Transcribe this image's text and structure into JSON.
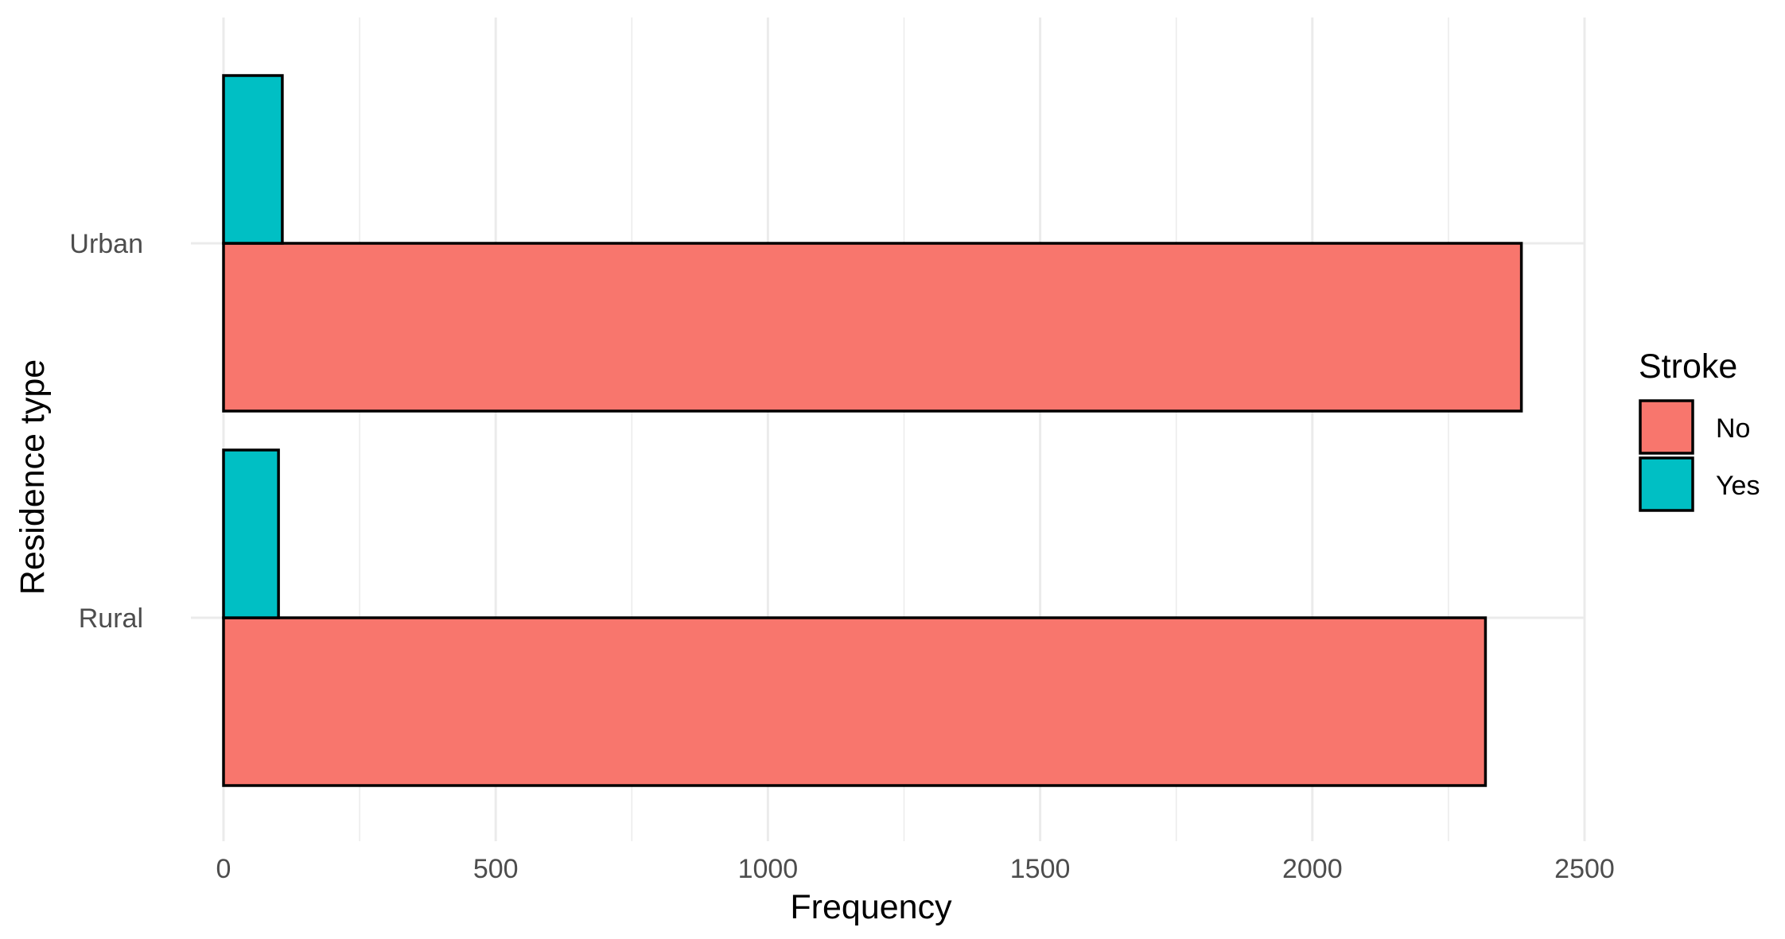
{
  "chart_data": {
    "type": "bar",
    "orientation": "horizontal",
    "categories": [
      "Rural",
      "Urban"
    ],
    "series": [
      {
        "name": "No",
        "values": [
          2318,
          2384
        ],
        "color": "#F8766D"
      },
      {
        "name": "Yes",
        "values": [
          101,
          108
        ],
        "color": "#00BFC4"
      }
    ],
    "xlabel": "Frequency",
    "ylabel": "Residence type",
    "xlim": [
      0,
      2500
    ],
    "x_ticks": [
      0,
      500,
      1000,
      1500,
      2000,
      2500
    ],
    "x_tick_labels": [
      "0",
      "500",
      "1000",
      "1500",
      "2000",
      "2500"
    ],
    "grid": true,
    "legend": {
      "title": "Stroke",
      "placement": "right",
      "items": [
        "No",
        "Yes"
      ]
    }
  }
}
